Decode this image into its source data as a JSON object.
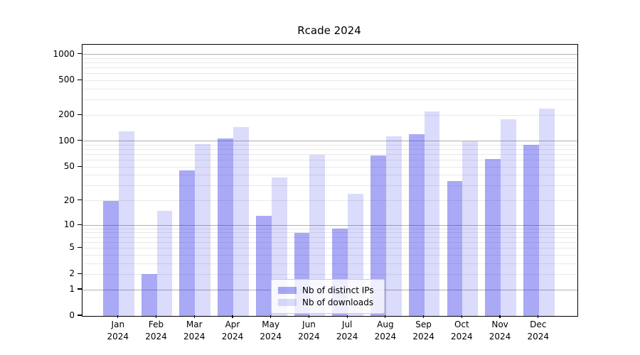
{
  "chart_data": {
    "type": "bar",
    "title": "Rcade 2024",
    "categories": [
      "Jan",
      "Feb",
      "Mar",
      "Apr",
      "May",
      "Jun",
      "Jul",
      "Aug",
      "Sep",
      "Oct",
      "Nov",
      "Dec"
    ],
    "x_year": "2024",
    "series": [
      {
        "name": "Nb of distinct IPs",
        "color": "rgba(40,40,230,0.4)",
        "values": [
          20,
          2,
          46,
          108,
          13,
          8,
          9,
          68,
          120,
          34,
          62,
          90
        ]
      },
      {
        "name": "Nb of downloads",
        "color": "rgba(40,40,230,0.17)",
        "values": [
          130,
          15,
          93,
          147,
          38,
          69,
          24,
          115,
          220,
          100,
          180,
          240
        ]
      }
    ],
    "yscale": "log1p",
    "yticks": [
      0,
      1,
      2,
      5,
      10,
      20,
      50,
      100,
      200,
      500,
      1000
    ],
    "ylim": [
      0,
      1290
    ],
    "grid": {
      "major_color": "#b0b0b0",
      "minor_color": "#e9e9e9"
    },
    "legend": {
      "location": "lower center"
    }
  }
}
